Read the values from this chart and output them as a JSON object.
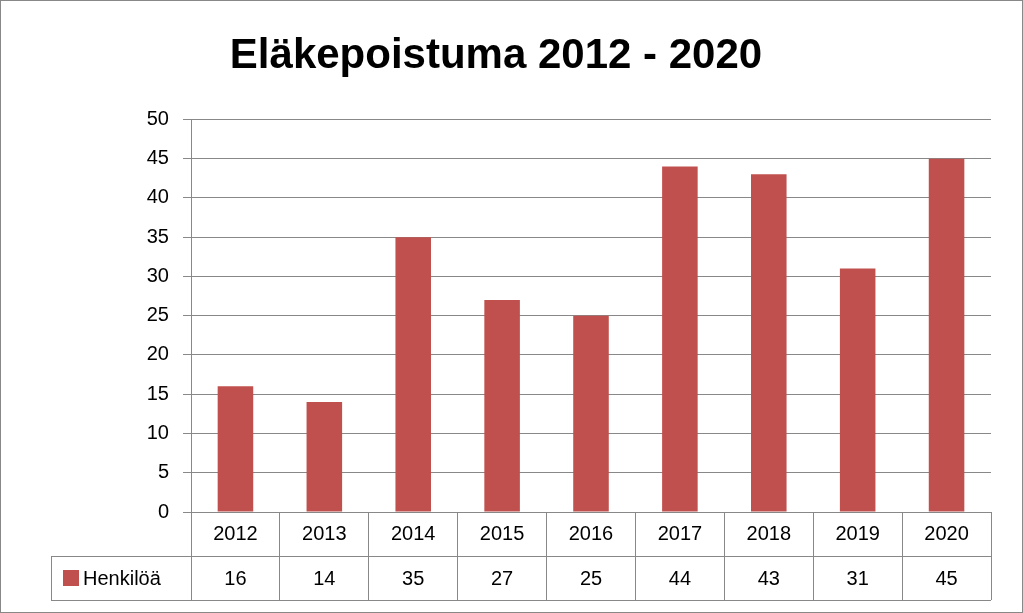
{
  "chart_data": {
    "type": "bar",
    "title": "Eläkepoistuma 2012 - 2020",
    "categories": [
      "2012",
      "2013",
      "2014",
      "2015",
      "2016",
      "2017",
      "2018",
      "2019",
      "2020"
    ],
    "series": [
      {
        "name": "Henkilöä",
        "color": "#c0504d",
        "values": [
          16,
          14,
          35,
          27,
          25,
          44,
          43,
          31,
          45
        ]
      }
    ],
    "ylim": [
      0,
      50
    ],
    "yticks": [
      0,
      5,
      10,
      15,
      20,
      25,
      30,
      35,
      40,
      45,
      50
    ],
    "grid": "y",
    "legend": "bottom",
    "data_labels": true
  }
}
